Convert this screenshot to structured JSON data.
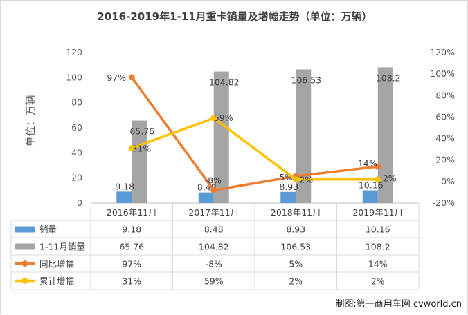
{
  "chart_data": {
    "type": "bar",
    "title": "2016-2019年1-11月重卡销量及增幅走势（单位：万辆）",
    "ylabel": "单位：万辆",
    "ylim": [
      0,
      120
    ],
    "y2lim": [
      -20,
      120
    ],
    "y_ticks": [
      "0",
      "20",
      "40",
      "60",
      "80",
      "100",
      "120"
    ],
    "y2_ticks": [
      "-20%",
      "0%",
      "20%",
      "40%",
      "60%",
      "80%",
      "100%",
      "120%"
    ],
    "categories": [
      "2016年11月",
      "2017年11月",
      "2018年11月",
      "2019年11月"
    ],
    "series": [
      {
        "name": "销量",
        "kind": "bar",
        "axis": "left",
        "color": "#5b9bd5",
        "values": [
          9.18,
          8.48,
          8.93,
          10.16
        ],
        "labels": [
          "9.18",
          "8.48",
          "8.93",
          "10.16"
        ]
      },
      {
        "name": "1-11月销量",
        "kind": "bar",
        "axis": "left",
        "color": "#a5a5a5",
        "values": [
          65.76,
          104.82,
          106.53,
          108.2
        ],
        "labels": [
          "65.76",
          "104.82",
          "106.53",
          "108.2"
        ]
      },
      {
        "name": "同比增幅",
        "kind": "line",
        "axis": "right",
        "color": "#ed7d31",
        "values": [
          97,
          -8,
          5,
          14
        ],
        "labels": [
          "97%",
          "-8%",
          "5%",
          "14%"
        ]
      },
      {
        "name": "累计增幅",
        "kind": "line",
        "axis": "right",
        "color": "#ffc000",
        "values": [
          31,
          59,
          2,
          2
        ],
        "labels": [
          "31%",
          "59%",
          "2%",
          "2%"
        ]
      }
    ],
    "grid": false,
    "legend": "data-table"
  },
  "credit": "制图:第一商用车网 cvworld.cn"
}
